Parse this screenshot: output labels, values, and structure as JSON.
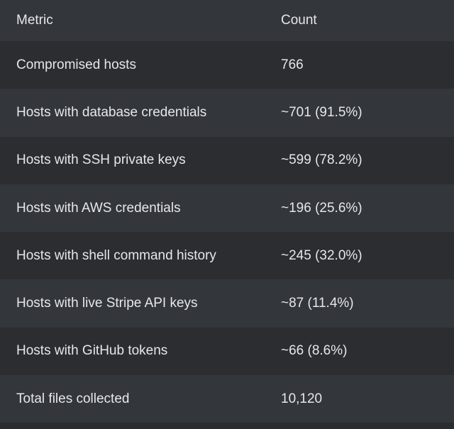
{
  "table": {
    "columns": [
      "Metric",
      "Count"
    ],
    "rows": [
      {
        "metric": "Compromised hosts",
        "count": "766"
      },
      {
        "metric": "Hosts with database credentials",
        "count": "~701 (91.5%)"
      },
      {
        "metric": "Hosts with SSH private keys",
        "count": "~599 (78.2%)"
      },
      {
        "metric": "Hosts with AWS credentials",
        "count": "~196 (25.6%)"
      },
      {
        "metric": "Hosts with shell command history",
        "count": "~245 (32.0%)"
      },
      {
        "metric": "Hosts with live Stripe API keys",
        "count": "~87 (11.4%)"
      },
      {
        "metric": "Hosts with GitHub tokens",
        "count": "~66 (8.6%)"
      },
      {
        "metric": "Total files collected",
        "count": "10,120"
      }
    ]
  }
}
